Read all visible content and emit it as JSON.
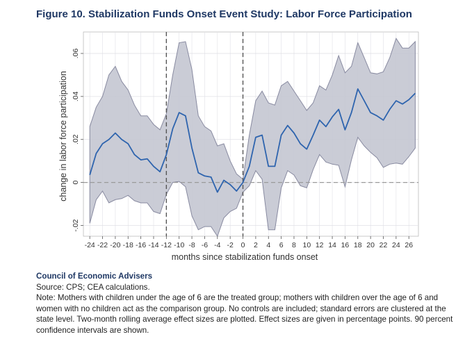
{
  "title": "Figure 10. Stabilization Funds Onset Event Study: Labor Force Participation",
  "chart_data": {
    "type": "line",
    "title": "Figure 10. Stabilization Funds Onset Event Study: Labor Force Participation",
    "xlabel": "months since stabilization funds onset",
    "ylabel": "change in labor force participation",
    "xlim": [
      -25,
      27.5
    ],
    "ylim": [
      -0.025,
      0.07
    ],
    "xticks": [
      -24,
      -22,
      -20,
      -18,
      -16,
      -14,
      -12,
      -10,
      -8,
      -6,
      -4,
      -2,
      0,
      2,
      4,
      6,
      8,
      10,
      12,
      14,
      16,
      18,
      20,
      22,
      24,
      26
    ],
    "xtick_labels": [
      "-24",
      "-22",
      "-20",
      "-18",
      "-16",
      "-14",
      "-12",
      "-10",
      "-8",
      "-6",
      "-4",
      "-2",
      "0",
      "2",
      "4",
      "6",
      "8",
      "10",
      "12",
      "14",
      "16",
      "18",
      "20",
      "22",
      "24",
      "26"
    ],
    "yticks": [
      -0.02,
      0,
      0.02,
      0.04,
      0.06
    ],
    "ytick_labels": [
      "-.02",
      "0",
      ".02",
      ".04",
      ".06"
    ],
    "vlines": [
      -12,
      0
    ],
    "hline": 0,
    "grid": true,
    "x": [
      -24,
      -23,
      -22,
      -21,
      -20,
      -19,
      -18,
      -17,
      -16,
      -15,
      -14,
      -13,
      -12,
      -11,
      -10,
      -9,
      -8,
      -7,
      -6,
      -5,
      -4,
      -3,
      -2,
      -1,
      0,
      1,
      2,
      3,
      4,
      5,
      6,
      7,
      8,
      9,
      10,
      11,
      12,
      13,
      14,
      15,
      16,
      17,
      18,
      19,
      20,
      21,
      22,
      23,
      24,
      25,
      26,
      27
    ],
    "series": [
      {
        "values": [
          0.0035,
          0.0135,
          0.018,
          0.02,
          0.023,
          0.02,
          0.018,
          0.013,
          0.0105,
          0.011,
          0.0075,
          0.005,
          0.013,
          0.025,
          0.0325,
          0.031,
          0.016,
          0.0045,
          0.003,
          0.0025,
          -0.0045,
          0.001,
          -0.001,
          -0.004,
          0.0,
          0.0075,
          0.021,
          0.022,
          0.0075,
          0.0075,
          0.022,
          0.0265,
          0.023,
          0.018,
          0.0155,
          0.022,
          0.029,
          0.026,
          0.0305,
          0.034,
          0.0245,
          0.0325,
          0.0435,
          0.038,
          0.0325,
          0.031,
          0.029,
          0.034,
          0.038,
          0.0365,
          0.0385,
          0.0415
        ]
      }
    ],
    "ci_upper": [
      0.026,
      0.035,
      0.04,
      0.05,
      0.054,
      0.047,
      0.043,
      0.036,
      0.031,
      0.031,
      0.027,
      0.0245,
      0.032,
      0.05,
      0.065,
      0.0655,
      0.0525,
      0.031,
      0.026,
      0.024,
      0.017,
      0.018,
      0.01,
      0.004,
      0.0015,
      0.022,
      0.038,
      0.0425,
      0.037,
      0.036,
      0.045,
      0.047,
      0.0425,
      0.038,
      0.0335,
      0.037,
      0.045,
      0.043,
      0.05,
      0.059,
      0.051,
      0.054,
      0.065,
      0.058,
      0.051,
      0.0505,
      0.0515,
      0.058,
      0.067,
      0.0625,
      0.0625,
      0.0655
    ],
    "ci_lower": [
      -0.019,
      -0.008,
      -0.004,
      -0.0095,
      -0.008,
      -0.0075,
      -0.006,
      -0.0085,
      -0.0095,
      -0.0095,
      -0.0135,
      -0.0145,
      -0.0055,
      0.0,
      0.0005,
      -0.002,
      -0.0155,
      -0.022,
      -0.0205,
      -0.0205,
      -0.025,
      -0.0165,
      -0.0135,
      -0.012,
      -0.0045,
      -0.0015,
      0.0055,
      0.0015,
      -0.022,
      -0.022,
      -0.0025,
      0.0055,
      0.0035,
      -0.0015,
      -0.0025,
      0.006,
      0.013,
      0.0095,
      0.0085,
      0.008,
      -0.002,
      0.0105,
      0.021,
      0.017,
      0.014,
      0.0115,
      0.007,
      0.0085,
      0.009,
      0.0085,
      0.012,
      0.016
    ],
    "colors": {
      "line": "#2e64ae",
      "band": "#c4c6d2",
      "band_edge": "#888aa0",
      "plot_bg": "#ffffff",
      "grid": "#e0e0e6",
      "vline": "#555555",
      "hline": "#9a9a9a"
    }
  },
  "footer": {
    "org": "Council of Economic Advisers",
    "source": "Source: CPS; CEA calculations.",
    "note": "Note: Mothers with children under the age of 6 are the treated group; mothers with children over the age of 6 and women with no children act as the comparison group. No controls are included; standard errors are clustered at the state level. Two-month rolling average effect sizes are plotted. Effect sizes are given in percentage points. 90 percent confidence intervals are shown."
  }
}
